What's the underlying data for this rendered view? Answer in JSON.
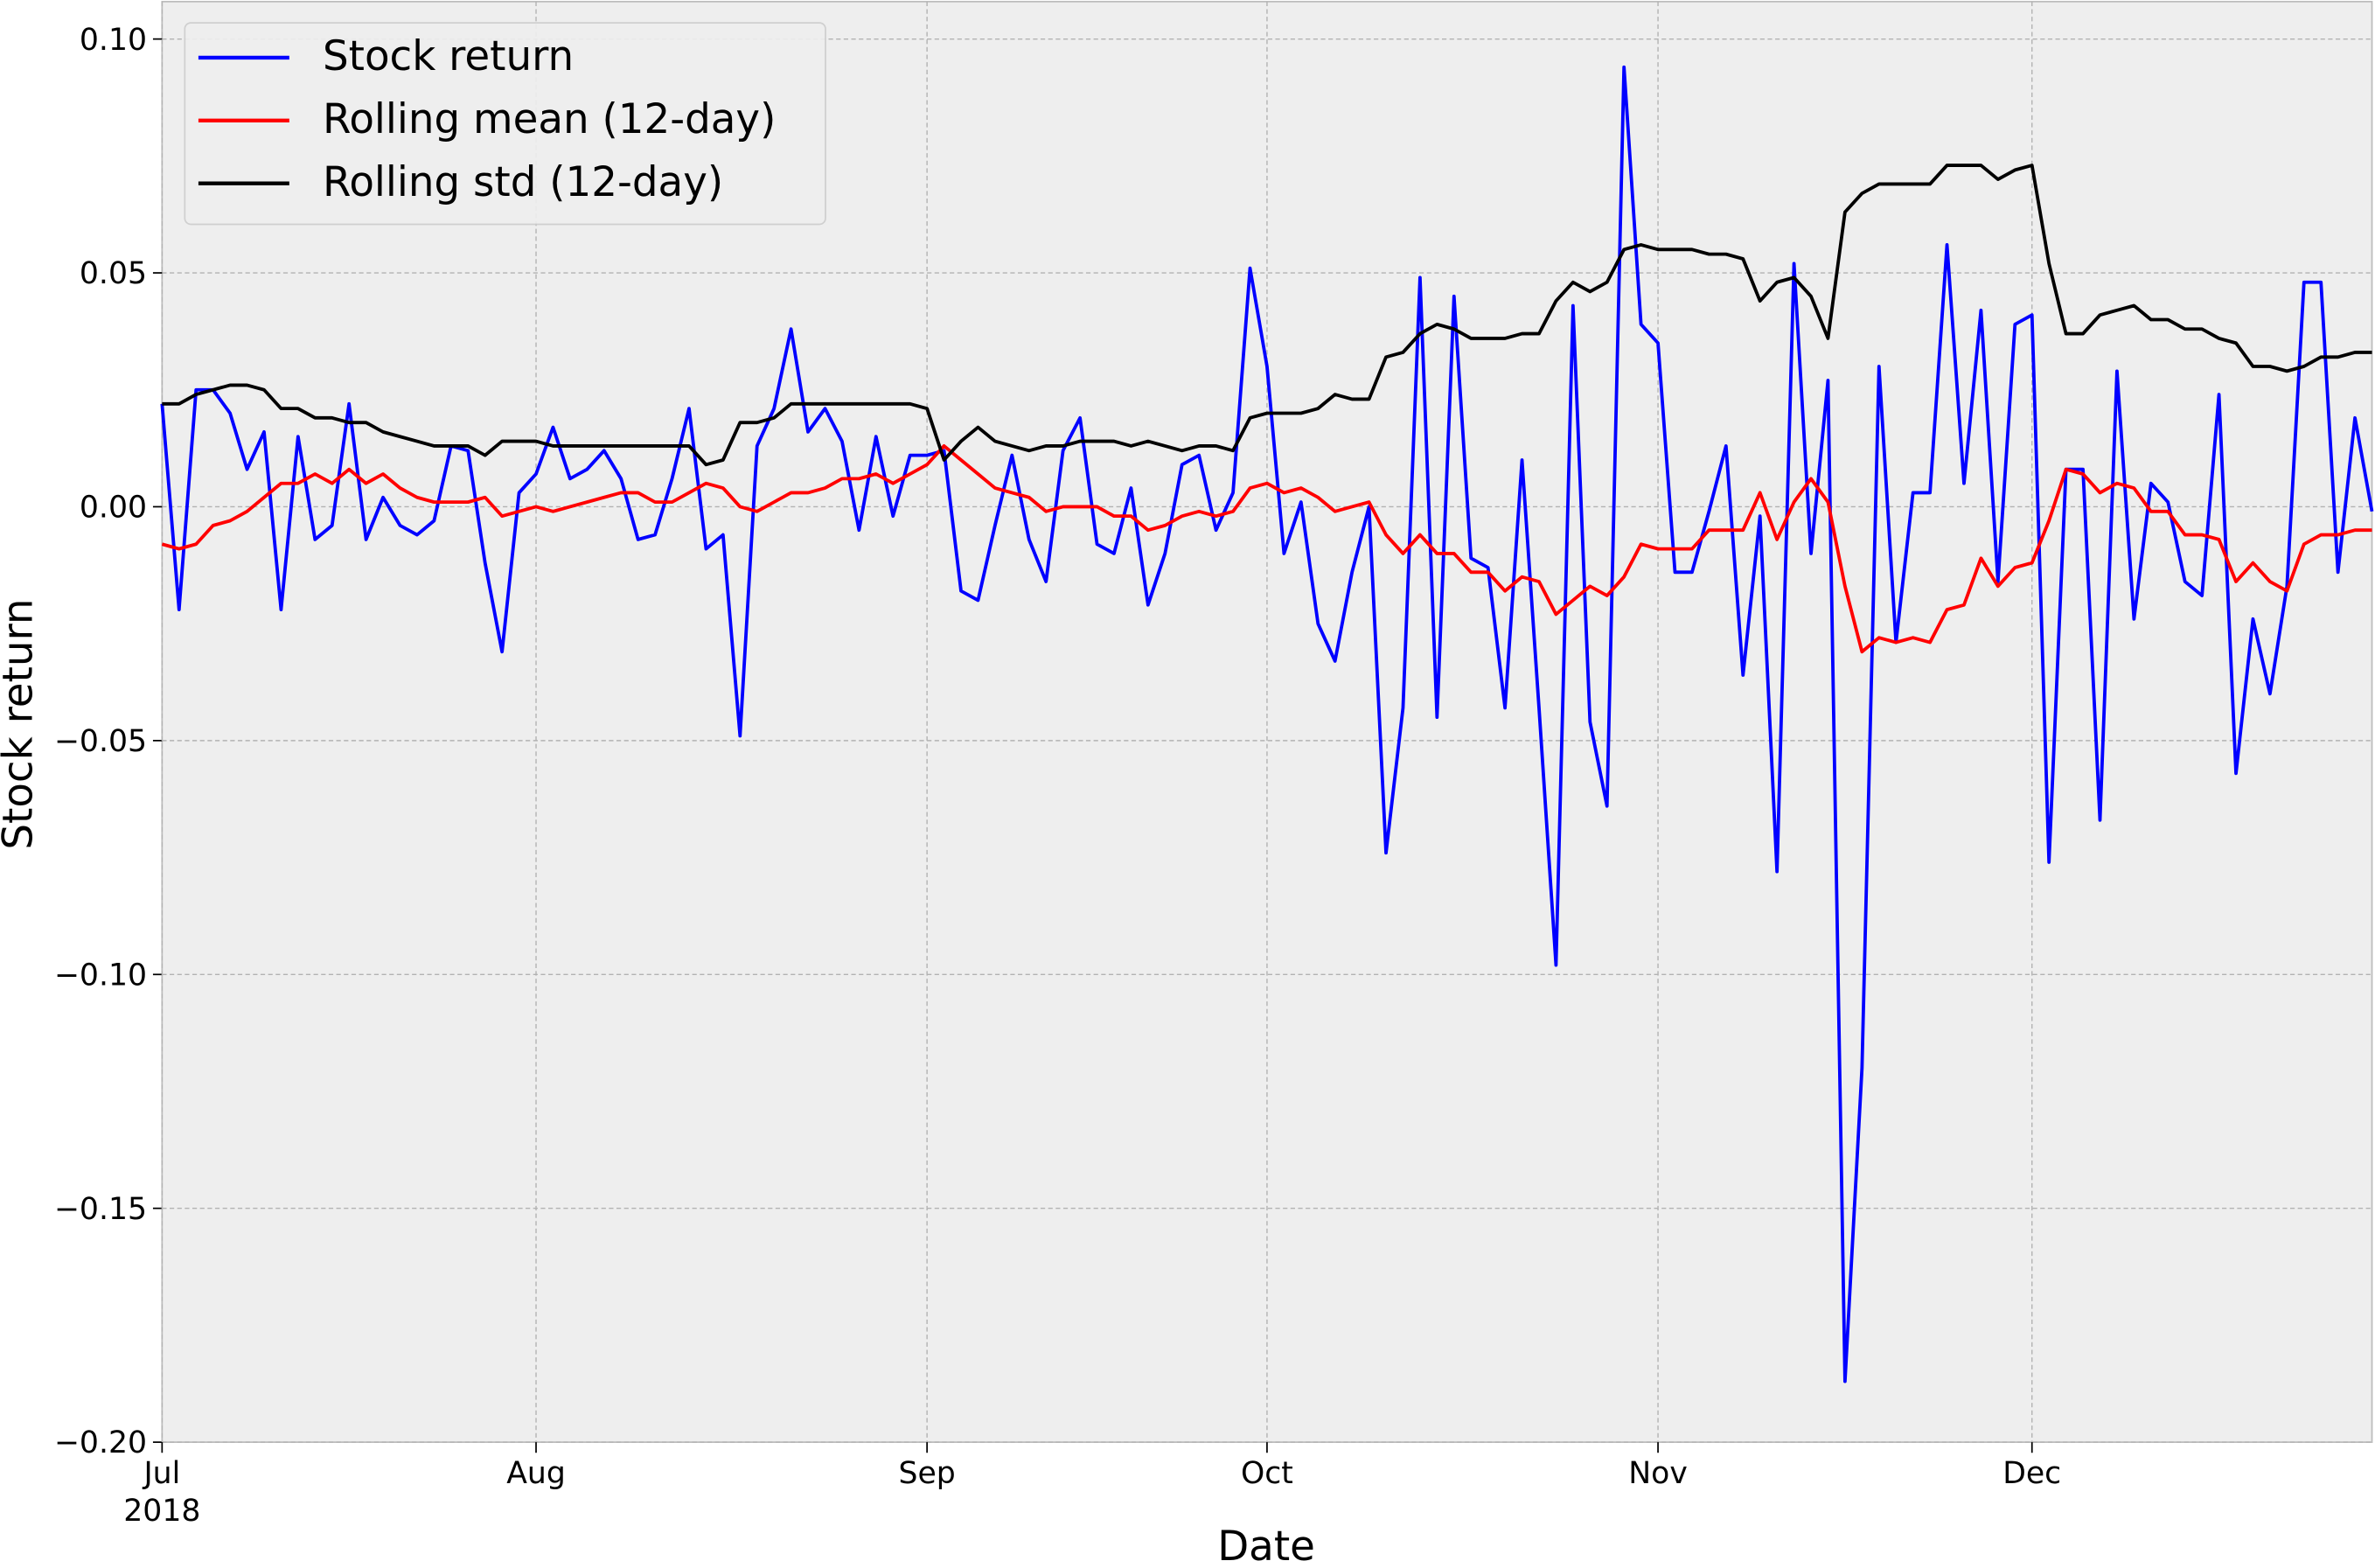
{
  "chart_data": {
    "type": "line",
    "xlabel": "Date",
    "ylabel": "Stock return",
    "x": [
      "2018-07-02",
      "2018-07-03",
      "2018-07-04",
      "2018-07-05",
      "2018-07-06",
      "2018-07-09",
      "2018-07-10",
      "2018-07-11",
      "2018-07-12",
      "2018-07-13",
      "2018-07-16",
      "2018-07-17",
      "2018-07-18",
      "2018-07-19",
      "2018-07-20",
      "2018-07-23",
      "2018-07-24",
      "2018-07-25",
      "2018-07-26",
      "2018-07-27",
      "2018-07-30",
      "2018-07-31",
      "2018-08-01",
      "2018-08-02",
      "2018-08-03",
      "2018-08-06",
      "2018-08-07",
      "2018-08-08",
      "2018-08-09",
      "2018-08-10",
      "2018-08-13",
      "2018-08-14",
      "2018-08-15",
      "2018-08-16",
      "2018-08-17",
      "2018-08-20",
      "2018-08-21",
      "2018-08-22",
      "2018-08-23",
      "2018-08-24",
      "2018-08-27",
      "2018-08-28",
      "2018-08-29",
      "2018-08-30",
      "2018-08-31",
      "2018-09-03",
      "2018-09-04",
      "2018-09-05",
      "2018-09-06",
      "2018-09-07",
      "2018-09-10",
      "2018-09-11",
      "2018-09-12",
      "2018-09-13",
      "2018-09-14",
      "2018-09-17",
      "2018-09-18",
      "2018-09-19",
      "2018-09-20",
      "2018-09-21",
      "2018-09-24",
      "2018-09-25",
      "2018-09-26",
      "2018-09-27",
      "2018-09-28",
      "2018-10-01",
      "2018-10-02",
      "2018-10-03",
      "2018-10-04",
      "2018-10-05",
      "2018-10-08",
      "2018-10-09",
      "2018-10-10",
      "2018-10-11",
      "2018-10-12",
      "2018-10-15",
      "2018-10-16",
      "2018-10-17",
      "2018-10-18",
      "2018-10-19",
      "2018-10-22",
      "2018-10-23",
      "2018-10-24",
      "2018-10-25",
      "2018-10-26",
      "2018-10-29",
      "2018-10-30",
      "2018-10-31",
      "2018-11-01",
      "2018-11-02",
      "2018-11-05",
      "2018-11-06",
      "2018-11-07",
      "2018-11-08",
      "2018-11-09",
      "2018-11-12",
      "2018-11-13",
      "2018-11-14",
      "2018-11-15",
      "2018-11-16",
      "2018-11-19",
      "2018-11-20",
      "2018-11-21",
      "2018-11-22",
      "2018-11-23",
      "2018-11-26",
      "2018-11-27",
      "2018-11-28",
      "2018-11-29",
      "2018-11-30",
      "2018-12-03",
      "2018-12-04",
      "2018-12-05",
      "2018-12-06",
      "2018-12-07",
      "2018-12-10",
      "2018-12-11",
      "2018-12-12",
      "2018-12-13",
      "2018-12-14",
      "2018-12-17",
      "2018-12-18",
      "2018-12-19",
      "2018-12-20",
      "2018-12-21",
      "2018-12-24",
      "2018-12-25",
      "2018-12-26",
      "2018-12-27",
      "2018-12-28",
      "2018-12-31"
    ],
    "series": [
      {
        "name": "Stock return",
        "color": "#0000ff",
        "values": [
          0.022,
          -0.022,
          0.025,
          0.025,
          0.02,
          0.008,
          0.016,
          -0.022,
          0.015,
          -0.007,
          -0.004,
          0.022,
          -0.007,
          0.002,
          -0.004,
          -0.006,
          -0.003,
          0.013,
          0.012,
          -0.012,
          -0.031,
          0.003,
          0.007,
          0.017,
          0.006,
          0.008,
          0.012,
          0.006,
          -0.007,
          -0.006,
          0.006,
          0.021,
          -0.009,
          -0.006,
          -0.049,
          0.013,
          0.021,
          0.038,
          0.016,
          0.021,
          0.014,
          -0.005,
          0.015,
          -0.002,
          0.011,
          0.011,
          0.012,
          -0.018,
          -0.02,
          -0.004,
          0.011,
          -0.007,
          -0.016,
          0.012,
          0.019,
          -0.008,
          -0.01,
          0.004,
          -0.021,
          -0.01,
          0.009,
          0.011,
          -0.005,
          0.003,
          0.051,
          0.03,
          -0.01,
          0.001,
          -0.025,
          -0.033,
          -0.014,
          0.0,
          -0.074,
          -0.043,
          0.049,
          -0.045,
          0.045,
          -0.011,
          -0.013,
          -0.043,
          0.01,
          -0.043,
          -0.098,
          0.043,
          -0.046,
          -0.064,
          0.094,
          0.039,
          0.035,
          -0.014,
          -0.014,
          -0.001,
          0.013,
          -0.036,
          -0.002,
          -0.078,
          0.052,
          -0.01,
          0.027,
          -0.187,
          -0.12,
          0.03,
          -0.029,
          0.003,
          0.003,
          0.056,
          0.005,
          0.042,
          -0.016,
          0.039,
          0.041,
          -0.076,
          0.008,
          0.008,
          -0.067,
          0.029,
          -0.024,
          0.005,
          0.001,
          -0.016,
          -0.019,
          0.024,
          -0.057,
          -0.024,
          -0.04,
          -0.017,
          0.048,
          0.048,
          -0.014,
          0.019,
          -0.001
        ]
      },
      {
        "name": "Rolling mean (12-day)",
        "color": "#ff0000",
        "values": [
          -0.008,
          -0.009,
          -0.008,
          -0.004,
          -0.003,
          -0.001,
          0.002,
          0.005,
          0.005,
          0.007,
          0.005,
          0.008,
          0.005,
          0.007,
          0.004,
          0.002,
          0.001,
          0.001,
          0.001,
          0.002,
          -0.002,
          -0.001,
          0.0,
          -0.001,
          0.0,
          0.001,
          0.002,
          0.003,
          0.003,
          0.001,
          0.001,
          0.003,
          0.005,
          0.004,
          0.0,
          -0.001,
          0.001,
          0.003,
          0.003,
          0.004,
          0.006,
          0.006,
          0.007,
          0.005,
          0.007,
          0.009,
          0.013,
          0.01,
          0.007,
          0.004,
          0.003,
          0.002,
          -0.001,
          0.0,
          0.0,
          0.0,
          -0.002,
          -0.002,
          -0.005,
          -0.004,
          -0.002,
          -0.001,
          -0.002,
          -0.001,
          0.004,
          0.005,
          0.003,
          0.004,
          0.002,
          -0.001,
          0.0,
          0.001,
          -0.006,
          -0.01,
          -0.006,
          -0.01,
          -0.01,
          -0.014,
          -0.014,
          -0.018,
          -0.015,
          -0.016,
          -0.023,
          -0.02,
          -0.017,
          -0.019,
          -0.015,
          -0.008,
          -0.009,
          -0.009,
          -0.009,
          -0.005,
          -0.005,
          -0.005,
          0.003,
          -0.007,
          0.001,
          0.006,
          0.001,
          -0.017,
          -0.031,
          -0.028,
          -0.029,
          -0.028,
          -0.029,
          -0.022,
          -0.021,
          -0.011,
          -0.017,
          -0.013,
          -0.012,
          -0.003,
          0.008,
          0.007,
          0.003,
          0.005,
          0.004,
          -0.001,
          -0.001,
          -0.006,
          -0.006,
          -0.007,
          -0.016,
          -0.012,
          -0.016,
          -0.018,
          -0.008,
          -0.006,
          -0.006,
          -0.005,
          -0.005
        ]
      },
      {
        "name": "Rolling std (12-day)",
        "color": "#000000",
        "values": [
          0.022,
          0.022,
          0.024,
          0.025,
          0.026,
          0.026,
          0.025,
          0.021,
          0.021,
          0.019,
          0.019,
          0.018,
          0.018,
          0.016,
          0.015,
          0.014,
          0.013,
          0.013,
          0.013,
          0.011,
          0.014,
          0.014,
          0.014,
          0.013,
          0.013,
          0.013,
          0.013,
          0.013,
          0.013,
          0.013,
          0.013,
          0.013,
          0.009,
          0.01,
          0.018,
          0.018,
          0.019,
          0.022,
          0.022,
          0.022,
          0.022,
          0.022,
          0.022,
          0.022,
          0.022,
          0.021,
          0.01,
          0.014,
          0.017,
          0.014,
          0.013,
          0.012,
          0.013,
          0.013,
          0.014,
          0.014,
          0.014,
          0.013,
          0.014,
          0.013,
          0.012,
          0.013,
          0.013,
          0.012,
          0.019,
          0.02,
          0.02,
          0.02,
          0.021,
          0.024,
          0.023,
          0.023,
          0.032,
          0.033,
          0.037,
          0.039,
          0.038,
          0.036,
          0.036,
          0.036,
          0.037,
          0.037,
          0.044,
          0.048,
          0.046,
          0.048,
          0.055,
          0.056,
          0.055,
          0.055,
          0.055,
          0.054,
          0.054,
          0.053,
          0.044,
          0.048,
          0.049,
          0.045,
          0.036,
          0.063,
          0.067,
          0.069,
          0.069,
          0.069,
          0.069,
          0.073,
          0.073,
          0.073,
          0.07,
          0.072,
          0.073,
          0.052,
          0.037,
          0.037,
          0.041,
          0.042,
          0.043,
          0.04,
          0.04,
          0.038,
          0.038,
          0.036,
          0.035,
          0.03,
          0.03,
          0.029,
          0.03,
          0.032,
          0.032,
          0.033,
          0.033
        ]
      }
    ],
    "xlim": [
      "2018-07-02",
      "2018-12-31"
    ],
    "xticks": [
      {
        "value": "2018-07-02",
        "label": "Jul\n2018"
      },
      {
        "value": "2018-08-01",
        "label": "Aug"
      },
      {
        "value": "2018-09-03",
        "label": "Sep"
      },
      {
        "value": "2018-10-01",
        "label": "Oct"
      },
      {
        "value": "2018-11-01",
        "label": "Nov"
      },
      {
        "value": "2018-12-03",
        "label": "Dec"
      }
    ],
    "ylim": [
      -0.2,
      0.108
    ],
    "yticks": [
      {
        "value": 0.1,
        "label": "0.10"
      },
      {
        "value": 0.05,
        "label": "0.05"
      },
      {
        "value": 0,
        "label": "0.00"
      },
      {
        "value": -0.05,
        "label": "−0.05"
      },
      {
        "value": -0.1,
        "label": "−0.10"
      },
      {
        "value": -0.15,
        "label": "−0.15"
      },
      {
        "value": -0.2,
        "label": "−0.20"
      }
    ],
    "grid": true,
    "legend": "upper left"
  }
}
